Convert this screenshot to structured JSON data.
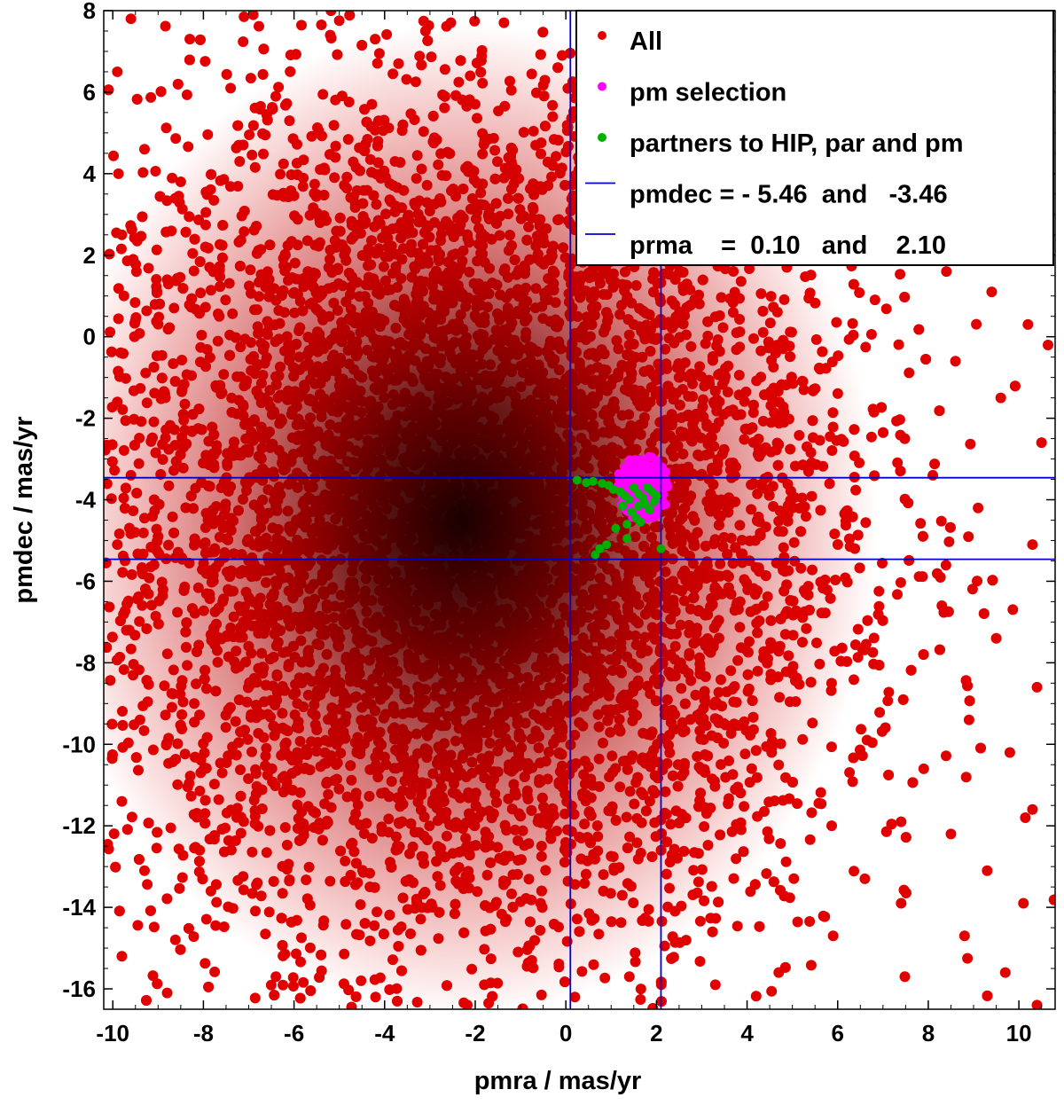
{
  "chart_data": {
    "type": "scatter",
    "xlabel": "pmra / mas/yr",
    "ylabel": "pmdec / mas/yr",
    "xlim": [
      -10.2,
      10.8
    ],
    "ylim": [
      -16.5,
      8.0
    ],
    "xticks": [
      -10,
      -8,
      -6,
      -4,
      -2,
      0,
      2,
      4,
      6,
      8,
      10
    ],
    "yticks": [
      8,
      6,
      4,
      2,
      0,
      -2,
      -4,
      -6,
      -8,
      -10,
      -12,
      -14,
      -16
    ],
    "x_tick_labels": [
      "-10",
      "-8",
      "-6",
      "-4",
      "-2",
      "0",
      "2",
      "4",
      "6",
      "8",
      "10"
    ],
    "y_tick_labels": [
      "8",
      "6",
      "4",
      "2",
      "0",
      "-2",
      "-4",
      "-6",
      "-8",
      "-10",
      "-12",
      "-14",
      "-16"
    ],
    "legend_placement": "top-right",
    "series": [
      {
        "name": "All",
        "color": "#e00000",
        "description_density_center": [
          -2.3,
          -4.5
        ],
        "points_sample": [
          [
            -9.6,
            7.8
          ],
          [
            -8.3,
            7.3
          ],
          [
            -6.9,
            7.9
          ],
          [
            -5.2,
            7.4
          ],
          [
            -9.9,
            6.5
          ],
          [
            -7.4,
            6.1
          ],
          [
            -6.1,
            5.3
          ],
          [
            -9.3,
            4.6
          ],
          [
            -8.5,
            3.8
          ],
          [
            -7.2,
            4.3
          ],
          [
            -9.8,
            2.5
          ],
          [
            -8.8,
            1.4
          ],
          [
            -9.5,
            0.4
          ],
          [
            -9.9,
            -1.6
          ],
          [
            -9.6,
            -3.4
          ],
          [
            -9.9,
            -5.1
          ],
          [
            -9.7,
            -7.2
          ],
          [
            -9.4,
            -9.4
          ],
          [
            -9.8,
            -11.4
          ],
          [
            -9.3,
            -13.1
          ],
          [
            -9.8,
            -15.2
          ],
          [
            -8.8,
            -16.1
          ],
          [
            -6.4,
            -15.7
          ],
          [
            -4.2,
            -16.2
          ],
          [
            -1.8,
            -15.9
          ],
          [
            0.2,
            -16.2
          ],
          [
            5.1,
            4.1
          ],
          [
            6.1,
            3.6
          ],
          [
            7.3,
            2.1
          ],
          [
            8.4,
            1.6
          ],
          [
            9.4,
            1.1
          ],
          [
            10.2,
            0.3
          ],
          [
            8.6,
            -0.6
          ],
          [
            9.6,
            -1.5
          ],
          [
            10.5,
            -2.6
          ],
          [
            8.1,
            -3.4
          ],
          [
            9.1,
            -4.2
          ],
          [
            10.3,
            -5.1
          ],
          [
            8.3,
            -6.6
          ],
          [
            9.5,
            -7.4
          ],
          [
            10.4,
            -8.6
          ],
          [
            8.9,
            -9.4
          ],
          [
            9.8,
            -10.2
          ],
          [
            10.3,
            -11.6
          ],
          [
            8.5,
            -12.2
          ],
          [
            9.3,
            -13.1
          ],
          [
            10.1,
            -13.9
          ],
          [
            8.8,
            -14.7
          ],
          [
            9.7,
            -15.6
          ],
          [
            10.4,
            -16.4
          ],
          [
            7.4,
            -11.9
          ],
          [
            7.9,
            -10.6
          ],
          [
            6.6,
            -13.3
          ],
          [
            5.9,
            -14.7
          ],
          [
            4.7,
            -15.6
          ],
          [
            3.3,
            -15.9
          ]
        ]
      },
      {
        "name": "pm selection",
        "color": "#ff00ff",
        "x_range": [
          1.1,
          2.3
        ],
        "y_range": [
          -4.5,
          -2.9
        ]
      },
      {
        "name": "partners to HIP, par and pm",
        "points": [
          [
            0.25,
            -3.52
          ],
          [
            0.45,
            -3.58
          ],
          [
            0.6,
            -3.55
          ],
          [
            0.8,
            -3.6
          ],
          [
            0.95,
            -3.65
          ],
          [
            1.05,
            -3.75
          ],
          [
            1.2,
            -3.8
          ],
          [
            1.3,
            -3.9
          ],
          [
            1.4,
            -4.0
          ],
          [
            1.5,
            -3.7
          ],
          [
            1.6,
            -3.85
          ],
          [
            1.7,
            -3.95
          ],
          [
            1.8,
            -3.7
          ],
          [
            1.9,
            -3.8
          ],
          [
            2.0,
            -3.9
          ],
          [
            1.45,
            -4.3
          ],
          [
            1.55,
            -4.45
          ],
          [
            1.65,
            -4.55
          ],
          [
            1.85,
            -4.25
          ],
          [
            1.25,
            -4.15
          ],
          [
            1.35,
            -4.6
          ],
          [
            1.35,
            -4.95
          ],
          [
            1.1,
            -4.7
          ],
          [
            0.9,
            -5.1
          ],
          [
            0.65,
            -5.35
          ],
          [
            0.75,
            -5.2
          ],
          [
            2.1,
            -5.2
          ],
          [
            1.75,
            -4.1
          ],
          [
            1.95,
            -4.05
          ],
          [
            1.6,
            -4.15
          ]
        ],
        "color": "#00b000"
      }
    ],
    "reference_lines": [
      {
        "name": "pmdec = - 5.46  and   -3.46",
        "orientation": "horizontal",
        "values": [
          -5.46,
          -3.46
        ],
        "color": "#0000cc"
      },
      {
        "name": "prma    =  0.10   and    2.10",
        "orientation": "vertical",
        "values": [
          0.1,
          2.1
        ],
        "color": "#0000cc"
      }
    ]
  },
  "legend": {
    "items": [
      {
        "label": "All",
        "kind": "dot",
        "color": "#e00000"
      },
      {
        "label": "pm selection",
        "kind": "dot",
        "color": "#ff00ff"
      },
      {
        "label": "partners to HIP, par and pm",
        "kind": "dot",
        "color": "#00b000"
      },
      {
        "label": "pmdec = - 5.46  and   -3.46",
        "kind": "line",
        "color": "#0000cc"
      },
      {
        "label": "prma    =  0.10   and    2.10",
        "kind": "line",
        "color": "#0000cc"
      }
    ]
  }
}
